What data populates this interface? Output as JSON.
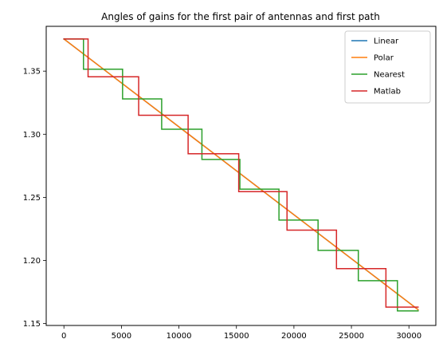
{
  "chart_data": {
    "type": "line",
    "title": "Angles of gains for the first pair of antennas and first path",
    "xlabel": "",
    "ylabel": "",
    "xlim": [
      -1540,
      32340
    ],
    "ylim": [
      1.1485,
      1.3855
    ],
    "xticks": [
      0,
      5000,
      10000,
      15000,
      20000,
      25000,
      30000
    ],
    "yticks": [
      1.15,
      1.2,
      1.25,
      1.3,
      1.35
    ],
    "ytick_labels": [
      "1.15",
      "1.20",
      "1.25",
      "1.30",
      "1.35"
    ],
    "grid": false,
    "legend": "top-right",
    "series": [
      {
        "name": "Linear",
        "color": "#1f77b4",
        "step": false,
        "x": [
          0,
          30800
        ],
        "y": [
          1.3755,
          1.161
        ]
      },
      {
        "name": "Polar",
        "color": "#ff7f0e",
        "step": false,
        "x": [
          0,
          30800
        ],
        "y": [
          1.3755,
          1.161
        ]
      },
      {
        "name": "Nearest",
        "color": "#2ca02c",
        "step": true,
        "x": [
          0,
          1700,
          5100,
          8500,
          12000,
          15300,
          18700,
          22100,
          25600,
          29000,
          30800
        ],
        "y": [
          1.3755,
          1.3515,
          1.328,
          1.304,
          1.28,
          1.2565,
          1.232,
          1.208,
          1.184,
          1.16,
          1.16
        ]
      },
      {
        "name": "Matlab",
        "color": "#d62728",
        "step": true,
        "x": [
          0,
          2100,
          6500,
          10800,
          15200,
          19400,
          23700,
          28000,
          30800
        ],
        "y": [
          1.3755,
          1.3455,
          1.315,
          1.2845,
          1.2545,
          1.224,
          1.1935,
          1.163,
          1.163
        ]
      }
    ]
  }
}
